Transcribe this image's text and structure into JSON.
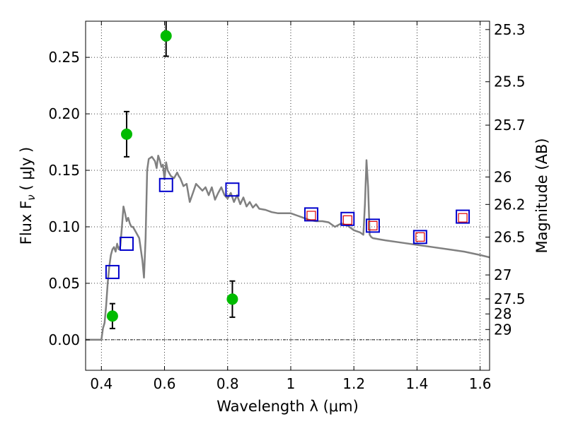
{
  "chart_data": {
    "type": "scatter",
    "xlabel": "Wavelength  λ (μm)",
    "ylabel": "Flux  F",
    "ylabel_sub": "ν",
    "ylabel_unit": "( μJy )",
    "y2label": "Magnitude (AB)",
    "xlim": [
      0.35,
      1.63
    ],
    "ylim": [
      -0.027,
      0.282
    ],
    "grid": true,
    "x_ticks": [
      0.4,
      0.6,
      0.8,
      1.0,
      1.2,
      1.4,
      1.6
    ],
    "x_tick_labels": [
      "0.4",
      "0.6",
      "0.8",
      "1",
      "1.2",
      "1.4",
      "1.6"
    ],
    "y_ticks": [
      0.0,
      0.05,
      0.1,
      0.15,
      0.2,
      0.25
    ],
    "y_tick_labels": [
      "0.00",
      "0.05",
      "0.10",
      "0.15",
      "0.20",
      "0.25"
    ],
    "y2_ticks": [
      {
        "label": "25.3",
        "flux": 0.2746
      },
      {
        "label": "25.5",
        "flux": 0.2284
      },
      {
        "label": "25.7",
        "flux": 0.19
      },
      {
        "label": "26",
        "flux": 0.1441
      },
      {
        "label": "26.2",
        "flux": 0.1198
      },
      {
        "label": "26.5",
        "flux": 0.0909
      },
      {
        "label": "27",
        "flux": 0.0574
      },
      {
        "label": "27.5",
        "flux": 0.0362
      },
      {
        "label": "28",
        "flux": 0.0229
      },
      {
        "label": "29",
        "flux": 0.0091
      }
    ],
    "series": [
      {
        "marker": "line",
        "color": "#808080",
        "x": [
          0.35,
          0.39,
          0.4,
          0.405,
          0.41,
          0.415,
          0.42,
          0.425,
          0.43,
          0.435,
          0.44,
          0.445,
          0.45,
          0.455,
          0.46,
          0.465,
          0.47,
          0.475,
          0.48,
          0.485,
          0.49,
          0.495,
          0.5,
          0.51,
          0.52,
          0.53,
          0.535,
          0.54,
          0.545,
          0.55,
          0.56,
          0.57,
          0.575,
          0.58,
          0.585,
          0.59,
          0.595,
          0.6,
          0.605,
          0.61,
          0.62,
          0.63,
          0.64,
          0.645,
          0.65,
          0.66,
          0.67,
          0.675,
          0.68,
          0.69,
          0.7,
          0.71,
          0.72,
          0.73,
          0.74,
          0.75,
          0.76,
          0.77,
          0.78,
          0.79,
          0.8,
          0.81,
          0.82,
          0.83,
          0.84,
          0.85,
          0.86,
          0.87,
          0.88,
          0.89,
          0.9,
          0.92,
          0.94,
          0.96,
          0.98,
          1.0,
          1.02,
          1.04,
          1.06,
          1.08,
          1.1,
          1.12,
          1.14,
          1.16,
          1.18,
          1.2,
          1.22,
          1.23,
          1.235,
          1.24,
          1.245,
          1.25,
          1.255,
          1.26,
          1.28,
          1.3,
          1.35,
          1.4,
          1.45,
          1.5,
          1.55,
          1.6,
          1.63
        ],
        "y": [
          0.0,
          0.0,
          0.0,
          0.01,
          0.015,
          0.03,
          0.05,
          0.065,
          0.075,
          0.08,
          0.082,
          0.078,
          0.085,
          0.08,
          0.083,
          0.1,
          0.118,
          0.112,
          0.105,
          0.108,
          0.103,
          0.1,
          0.1,
          0.095,
          0.09,
          0.07,
          0.055,
          0.09,
          0.15,
          0.16,
          0.162,
          0.158,
          0.152,
          0.163,
          0.159,
          0.153,
          0.155,
          0.142,
          0.157,
          0.15,
          0.145,
          0.143,
          0.148,
          0.145,
          0.143,
          0.136,
          0.138,
          0.13,
          0.122,
          0.13,
          0.138,
          0.135,
          0.132,
          0.135,
          0.128,
          0.135,
          0.124,
          0.13,
          0.135,
          0.128,
          0.125,
          0.13,
          0.122,
          0.128,
          0.12,
          0.126,
          0.118,
          0.122,
          0.117,
          0.12,
          0.116,
          0.115,
          0.113,
          0.112,
          0.112,
          0.112,
          0.11,
          0.108,
          0.106,
          0.105,
          0.105,
          0.104,
          0.1,
          0.103,
          0.101,
          0.097,
          0.095,
          0.093,
          0.12,
          0.159,
          0.135,
          0.093,
          0.091,
          0.09,
          0.089,
          0.088,
          0.086,
          0.084,
          0.082,
          0.08,
          0.078,
          0.075,
          0.073
        ]
      },
      {
        "marker": "circle",
        "color": "#00bb00",
        "x": [
          0.435,
          0.48,
          0.605,
          0.815
        ],
        "y": [
          0.021,
          0.182,
          0.269,
          0.036
        ],
        "yerr": [
          0.011,
          0.02,
          0.018,
          0.016
        ]
      },
      {
        "marker": "square",
        "color": "#0000cc",
        "x": [
          0.435,
          0.48,
          0.605,
          0.815,
          1.065,
          1.18,
          1.26,
          1.41,
          1.545
        ],
        "y": [
          0.06,
          0.085,
          0.137,
          0.133,
          0.111,
          0.107,
          0.101,
          0.091,
          0.109
        ]
      },
      {
        "marker": "square-small",
        "color": "#dd0000",
        "x": [
          1.065,
          1.18,
          1.26,
          1.41,
          1.545
        ],
        "y": [
          0.11,
          0.106,
          0.101,
          0.091,
          0.108
        ]
      }
    ]
  }
}
